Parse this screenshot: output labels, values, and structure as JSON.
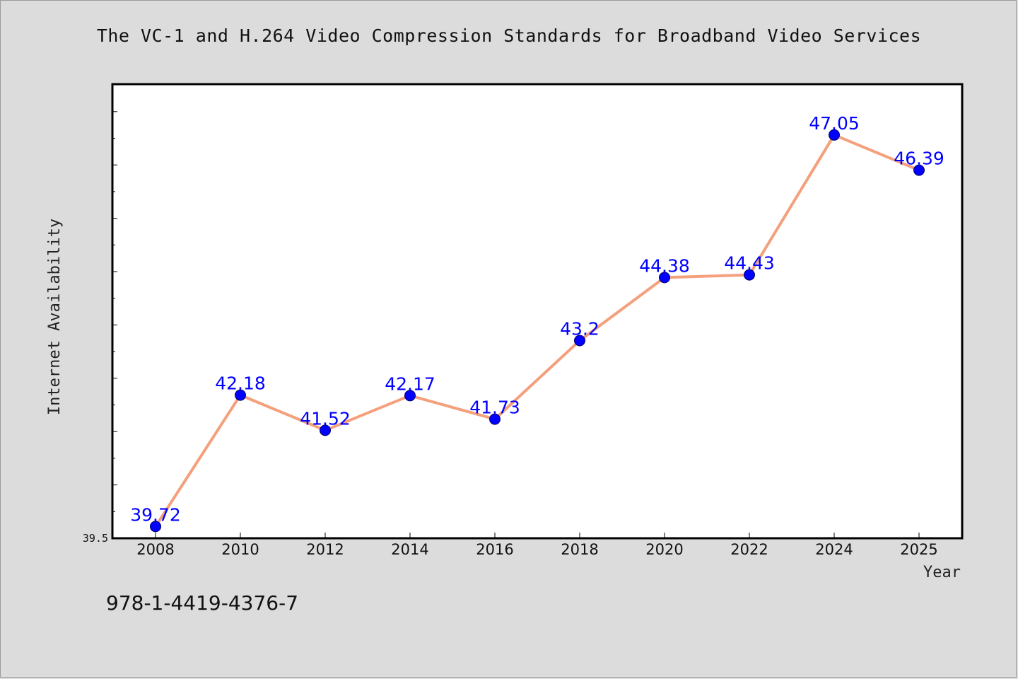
{
  "chart_data": {
    "type": "line",
    "title": "The VC-1 and H.264 Video Compression Standards for Broadband Video Services",
    "xlabel": "Year",
    "ylabel": "Internet Availability",
    "categories": [
      "2008",
      "2010",
      "2012",
      "2014",
      "2016",
      "2018",
      "2020",
      "2022",
      "2024",
      "2025"
    ],
    "series": [
      {
        "values": [
          39.72,
          42.18,
          41.52,
          42.17,
          41.73,
          43.2,
          44.38,
          44.43,
          47.05,
          46.39
        ],
        "data_labels": [
          "39.72",
          "42.18",
          "41.52",
          "42.17",
          "41.73",
          "43.2",
          "44.38",
          "44.43",
          "47.05",
          "46.39"
        ]
      }
    ],
    "y_tick_labels": [
      "39.5"
    ],
    "ylim": [
      39.5,
      48.0
    ],
    "grid": false,
    "colors": {
      "line": "#f4a07c",
      "marker_fill": "#0000ff",
      "marker_edge": "#000066",
      "data_label": "#0000ff",
      "plot_background": "#ffffff",
      "page_background": "#dcdcdc"
    }
  },
  "footer": {
    "isbn": "978-1-4419-4376-7"
  }
}
